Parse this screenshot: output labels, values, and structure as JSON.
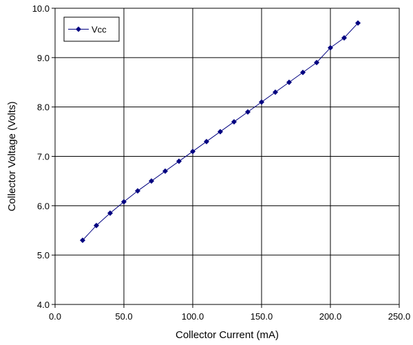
{
  "chart_data": {
    "type": "line",
    "title": "",
    "xlabel": "Collector Current (mA)",
    "ylabel": "Collector Voltage (Volts)",
    "xlim": [
      0,
      250
    ],
    "ylim": [
      4,
      10
    ],
    "x_ticks": [
      0,
      50,
      100,
      150,
      200,
      250
    ],
    "y_ticks": [
      4,
      5,
      6,
      7,
      8,
      9,
      10
    ],
    "x_tick_labels": [
      "0.0",
      "50.0",
      "100.0",
      "150.0",
      "200.0",
      "250.0"
    ],
    "y_tick_labels": [
      "4.0",
      "5.0",
      "6.0",
      "7.0",
      "8.0",
      "9.0",
      "10.0"
    ],
    "grid": true,
    "legend_position": "top-left",
    "series": [
      {
        "name": "Vcc",
        "color": "#000080",
        "marker": "diamond",
        "x": [
          20,
          30,
          40,
          50,
          60,
          70,
          80,
          90,
          100,
          110,
          120,
          130,
          140,
          150,
          160,
          170,
          180,
          190,
          200,
          210,
          220
        ],
        "y": [
          5.3,
          5.6,
          5.85,
          6.08,
          6.3,
          6.5,
          6.7,
          6.9,
          7.1,
          7.3,
          7.5,
          7.7,
          7.9,
          8.1,
          8.3,
          8.5,
          8.7,
          8.9,
          9.2,
          9.4,
          9.7
        ]
      }
    ]
  }
}
